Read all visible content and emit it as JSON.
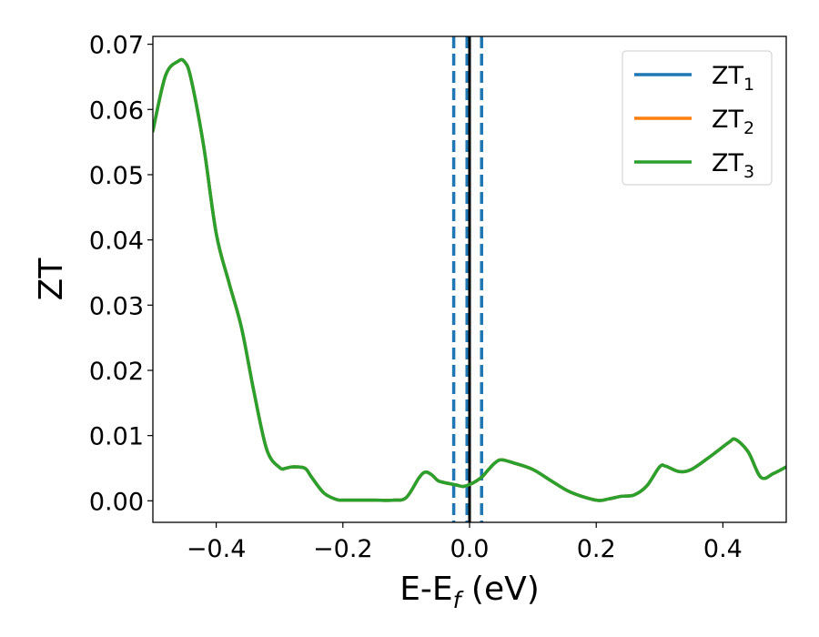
{
  "chart_data": {
    "type": "line",
    "xlabel": "E-E",
    "xlabel_sub": "f",
    "xlabel_unit": " (eV)",
    "ylabel": "ZT",
    "xlim": [
      -0.5,
      0.5
    ],
    "ylim": [
      -0.0033,
      0.0712
    ],
    "x_ticks": [
      -0.4,
      -0.2,
      0.0,
      0.2,
      0.4
    ],
    "x_tick_labels": [
      "−0.4",
      "−0.2",
      "0.0",
      "0.2",
      "0.4"
    ],
    "y_ticks": [
      0.0,
      0.01,
      0.02,
      0.03,
      0.04,
      0.05,
      0.06,
      0.07
    ],
    "y_tick_labels": [
      "0.00",
      "0.01",
      "0.02",
      "0.03",
      "0.04",
      "0.05",
      "0.06",
      "0.07"
    ],
    "grid": false,
    "legend_position": "top-right",
    "vertical_lines": [
      {
        "x": -0.025,
        "style": "dashed",
        "color": "#1f77b4"
      },
      {
        "x": -0.004,
        "style": "dashed",
        "color": "#1f77b4"
      },
      {
        "x": 0.019,
        "style": "dashed",
        "color": "#1f77b4"
      },
      {
        "x": 0.0,
        "style": "solid",
        "color": "#000000"
      }
    ],
    "x": [
      -0.5,
      -0.48,
      -0.46,
      -0.45,
      -0.44,
      -0.42,
      -0.4,
      -0.38,
      -0.36,
      -0.34,
      -0.32,
      -0.3,
      -0.29,
      -0.28,
      -0.26,
      -0.25,
      -0.23,
      -0.21,
      -0.2,
      -0.18,
      -0.15,
      -0.12,
      -0.1,
      -0.08,
      -0.07,
      -0.06,
      -0.05,
      -0.04,
      -0.03,
      -0.02,
      -0.01,
      0.0,
      0.01,
      0.02,
      0.03,
      0.04,
      0.05,
      0.07,
      0.1,
      0.13,
      0.16,
      0.2,
      0.22,
      0.24,
      0.26,
      0.28,
      0.3,
      0.31,
      0.33,
      0.35,
      0.38,
      0.41,
      0.42,
      0.44,
      0.46,
      0.48,
      0.5
    ],
    "series": [
      {
        "name": "ZT",
        "sub": "1",
        "color": "#1f77b4",
        "values": [
          0.0567,
          0.0652,
          0.0674,
          0.0673,
          0.0648,
          0.0545,
          0.041,
          0.0335,
          0.0265,
          0.0165,
          0.0078,
          0.0051,
          0.005,
          0.0052,
          0.005,
          0.0037,
          0.0012,
          0.0002,
          0.0001,
          0.0001,
          0.0001,
          0.0001,
          0.0005,
          0.0035,
          0.0044,
          0.004,
          0.0031,
          0.0028,
          0.0026,
          0.0024,
          0.0022,
          0.0025,
          0.003,
          0.0037,
          0.0048,
          0.0058,
          0.0063,
          0.0058,
          0.0048,
          0.003,
          0.0013,
          0.0001,
          0.0003,
          0.0007,
          0.0009,
          0.0023,
          0.0052,
          0.0053,
          0.0045,
          0.0048,
          0.0068,
          0.009,
          0.0094,
          0.0075,
          0.0036,
          0.0042,
          0.0052
        ]
      },
      {
        "name": "ZT",
        "sub": "2",
        "color": "#ff7f0e",
        "values": [
          0.0567,
          0.0652,
          0.0674,
          0.0673,
          0.0648,
          0.0545,
          0.041,
          0.0335,
          0.0265,
          0.0165,
          0.0078,
          0.0051,
          0.005,
          0.0052,
          0.005,
          0.0037,
          0.0012,
          0.0002,
          0.0001,
          0.0001,
          0.0001,
          0.0001,
          0.0005,
          0.0035,
          0.0044,
          0.004,
          0.0031,
          0.0028,
          0.0026,
          0.0024,
          0.0022,
          0.0025,
          0.003,
          0.0037,
          0.0048,
          0.0058,
          0.0063,
          0.0058,
          0.0048,
          0.003,
          0.0013,
          0.0001,
          0.0003,
          0.0007,
          0.0009,
          0.0023,
          0.0052,
          0.0053,
          0.0045,
          0.0048,
          0.0068,
          0.009,
          0.0094,
          0.0075,
          0.0036,
          0.0042,
          0.0052
        ]
      },
      {
        "name": "ZT",
        "sub": "3",
        "color": "#2ca02c",
        "values": [
          0.0567,
          0.0652,
          0.0674,
          0.0673,
          0.0648,
          0.0545,
          0.041,
          0.0335,
          0.0265,
          0.0165,
          0.0078,
          0.0051,
          0.005,
          0.0052,
          0.005,
          0.0037,
          0.0012,
          0.0002,
          0.0001,
          0.0001,
          0.0001,
          0.0001,
          0.0005,
          0.0035,
          0.0044,
          0.004,
          0.0031,
          0.0028,
          0.0026,
          0.0024,
          0.0022,
          0.0025,
          0.003,
          0.0037,
          0.0048,
          0.0058,
          0.0063,
          0.0058,
          0.0048,
          0.003,
          0.0013,
          0.0001,
          0.0003,
          0.0007,
          0.0009,
          0.0023,
          0.0052,
          0.0053,
          0.0045,
          0.0048,
          0.0068,
          0.009,
          0.0094,
          0.0075,
          0.0036,
          0.0042,
          0.0052
        ]
      }
    ]
  }
}
